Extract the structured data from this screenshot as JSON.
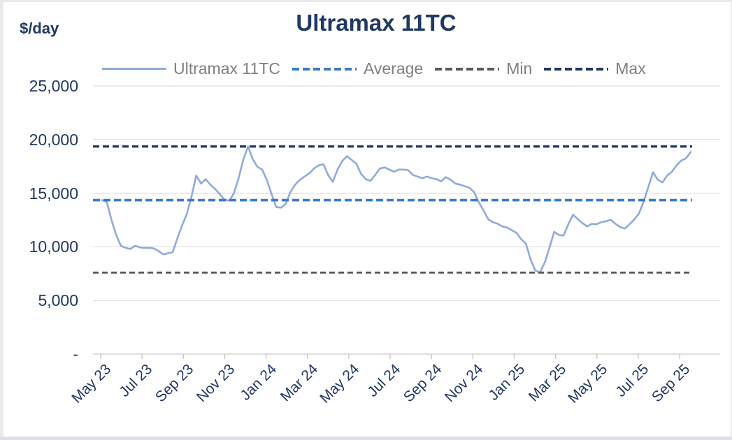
{
  "header": {
    "title": "Ultramax 11TC",
    "y_axis_unit": "$/day"
  },
  "legend": {
    "items": [
      {
        "label": "Ultramax 11TC",
        "style": "solid",
        "color": "#8FAADC"
      },
      {
        "label": "Average",
        "style": "dashed",
        "color": "#3A7CC8"
      },
      {
        "label": "Min",
        "style": "dashed",
        "color": "#5A5A5A"
      },
      {
        "label": "Max",
        "style": "dashed",
        "color": "#1F3864"
      }
    ]
  },
  "colors": {
    "navy_text": "#203864",
    "legend_text": "#7F7F7F",
    "series_line": "#8FAADC",
    "average_line": "#3A7CC8",
    "min_line": "#5A5A5A",
    "max_line": "#1F3864",
    "gridline": "#D9D9D9",
    "axis_line": "#BFBFBF",
    "edge": "#EAEAEA",
    "edge_bottom": "#DCE1E8"
  },
  "chart_data": {
    "type": "line",
    "title": "Ultramax 11TC",
    "ylabel": "$/day",
    "ylim": [
      0,
      25000
    ],
    "grid": "horizontal",
    "legend_position": "top",
    "ytick_values": [
      25000,
      20000,
      15000,
      10000,
      5000,
      0
    ],
    "ytick_labels": [
      "25,000",
      "20,000",
      "15,000",
      "10,000",
      "5,000",
      "-"
    ],
    "xtick_labels": [
      "May 23",
      "Jul 23",
      "Sep 23",
      "Nov 23",
      "Jan 24",
      "Mar 24",
      "May 24",
      "Jul 24",
      "Sep 24",
      "Nov 24",
      "Jan 25",
      "Mar 25",
      "May 25",
      "Jul 25",
      "Sep 25"
    ],
    "x_range_note": "weekly samples from May 2023 to Sep 2025",
    "series": [
      {
        "name": "Ultramax 11TC",
        "kind": "weekly-line",
        "values": [
          14350,
          14200,
          12500,
          11100,
          10100,
          9900,
          9800,
          10100,
          9950,
          9900,
          9900,
          9850,
          9600,
          9300,
          9400,
          9500,
          10800,
          12000,
          13050,
          14700,
          16650,
          15900,
          16300,
          15800,
          15400,
          14900,
          14400,
          14300,
          15000,
          16400,
          18150,
          19350,
          18150,
          17450,
          17200,
          16200,
          14900,
          13700,
          13650,
          14000,
          15100,
          15800,
          16250,
          16550,
          16850,
          17300,
          17600,
          17700,
          16700,
          16050,
          17200,
          18000,
          18450,
          18100,
          17750,
          16800,
          16300,
          16150,
          16700,
          17300,
          17400,
          17200,
          17000,
          17200,
          17200,
          17150,
          16700,
          16550,
          16400,
          16550,
          16400,
          16300,
          16100,
          16500,
          16250,
          15900,
          15800,
          15650,
          15500,
          15100,
          14150,
          13400,
          12550,
          12300,
          12150,
          11900,
          11800,
          11550,
          11300,
          10700,
          10300,
          8800,
          7800,
          7600,
          8550,
          9900,
          11400,
          11100,
          11050,
          12100,
          12990,
          12600,
          12200,
          11900,
          12150,
          12100,
          12300,
          12380,
          12530,
          12150,
          11850,
          11700,
          12100,
          12550,
          13100,
          14200,
          15600,
          16950,
          16250,
          16000,
          16650,
          17000,
          17600,
          18050,
          18250,
          18850
        ]
      },
      {
        "name": "Average",
        "kind": "constant-line",
        "value": 14350
      },
      {
        "name": "Min",
        "kind": "constant-line",
        "value": 7600
      },
      {
        "name": "Max",
        "kind": "constant-line",
        "value": 19350
      }
    ]
  }
}
